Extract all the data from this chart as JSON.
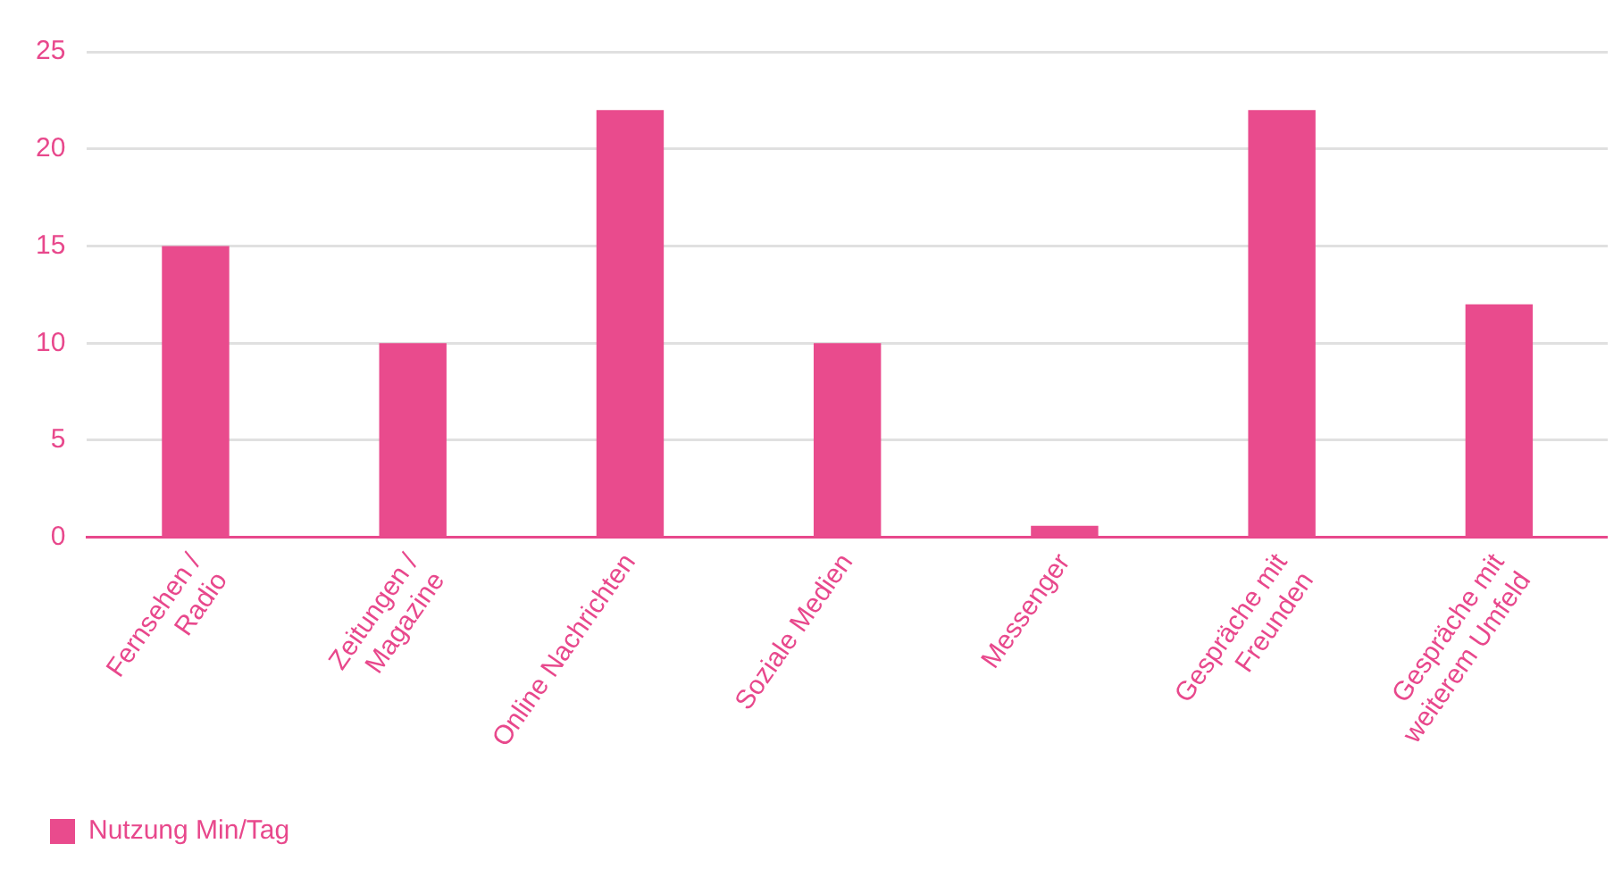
{
  "chart_data": {
    "type": "bar",
    "categories": [
      "Fernsehen /\nRadio",
      "Zeitungen /\nMagazine",
      "Online Nachrichten",
      "Soziale Medien",
      "Messenger",
      "Gespräche mit\nFreunden",
      "Gespräche mit\nweiterem Umfeld"
    ],
    "series": [
      {
        "name": "Nutzung Min/Tag",
        "color": "#e94b8d",
        "values": [
          15,
          10,
          22,
          10,
          0.6,
          22,
          12
        ]
      }
    ],
    "ylim": [
      0,
      25
    ],
    "yticks": [
      0,
      5,
      10,
      15,
      20,
      25
    ],
    "grid": "y",
    "legend": "bottom left"
  }
}
